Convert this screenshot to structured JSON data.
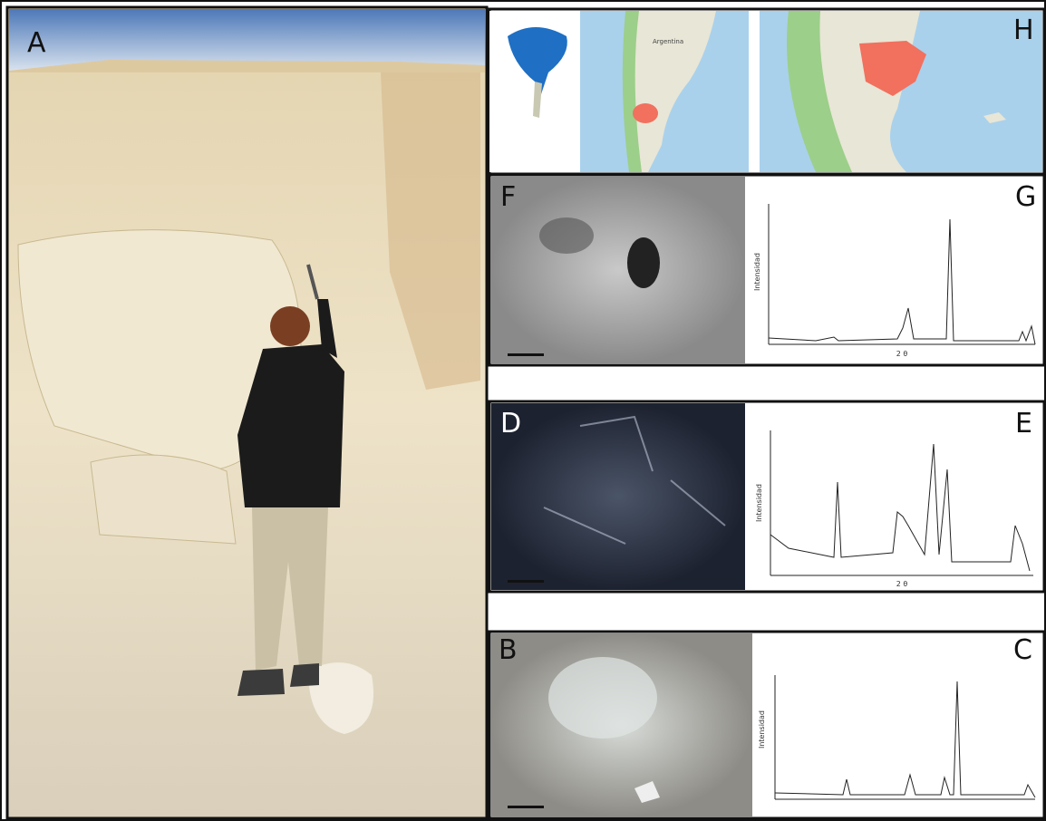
{
  "panels": [
    {
      "label": "A"
    },
    {
      "label": "H"
    },
    {
      "label": "F"
    },
    {
      "label": "G"
    },
    {
      "label": "D"
    },
    {
      "label": "E"
    },
    {
      "label": "B"
    },
    {
      "label": "C"
    }
  ],
  "map": {
    "country": "Argentina"
  },
  "xrd_axis": {
    "y_label": "Intensidad",
    "x_label": "2 θ"
  }
}
